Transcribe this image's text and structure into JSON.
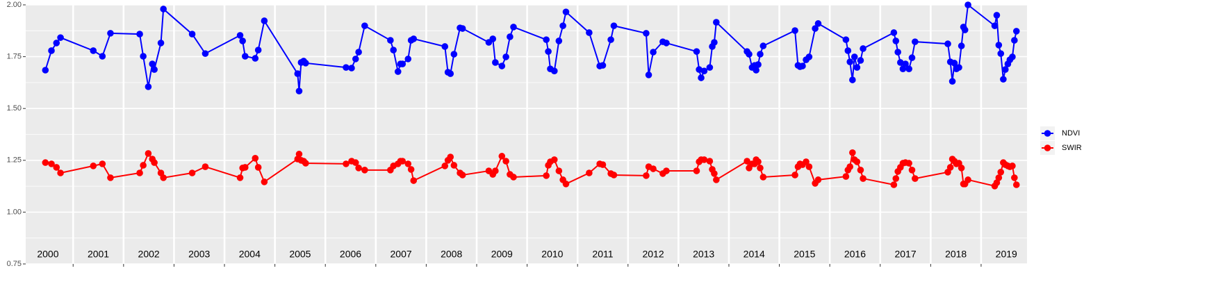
{
  "chart_data": {
    "type": "line",
    "x": [
      2000.45,
      2000.57,
      2000.67,
      2000.75,
      2001.4,
      2001.58,
      2001.74,
      2002.32,
      2002.39,
      2002.49,
      2002.57,
      2002.61,
      2002.74,
      2002.79,
      2003.36,
      2003.62,
      2004.31,
      2004.36,
      2004.41,
      2004.61,
      2004.67,
      2004.79,
      2005.45,
      2005.48,
      2005.52,
      2005.57,
      2005.61,
      2006.41,
      2006.52,
      2006.6,
      2006.66,
      2006.78,
      2007.29,
      2007.35,
      2007.44,
      2007.49,
      2007.53,
      2007.64,
      2007.7,
      2007.75,
      2008.37,
      2008.43,
      2008.48,
      2008.55,
      2008.67,
      2008.72,
      2009.24,
      2009.32,
      2009.37,
      2009.5,
      2009.58,
      2009.66,
      2009.73,
      2010.38,
      2010.42,
      2010.46,
      2010.54,
      2010.63,
      2010.71,
      2010.77,
      2011.23,
      2011.44,
      2011.5,
      2011.66,
      2011.72,
      2012.36,
      2012.41,
      2012.5,
      2012.69,
      2012.76,
      2013.36,
      2013.41,
      2013.45,
      2013.51,
      2013.62,
      2013.67,
      2013.71,
      2013.75,
      2014.36,
      2014.4,
      2014.46,
      2014.51,
      2014.54,
      2014.58,
      2014.62,
      2014.68,
      2015.31,
      2015.37,
      2015.41,
      2015.46,
      2015.53,
      2015.59,
      2015.71,
      2015.77,
      2016.32,
      2016.36,
      2016.4,
      2016.45,
      2016.49,
      2016.54,
      2016.61,
      2016.66,
      2017.27,
      2017.31,
      2017.35,
      2017.4,
      2017.45,
      2017.5,
      2017.57,
      2017.63,
      2017.69,
      2018.34,
      2018.39,
      2018.43,
      2018.47,
      2018.51,
      2018.56,
      2018.61,
      2018.65,
      2018.68,
      2018.74,
      2019.27,
      2019.31,
      2019.35,
      2019.39,
      2019.44,
      2019.48,
      2019.53,
      2019.57,
      2019.62,
      2019.66,
      2019.7
    ],
    "series": [
      {
        "name": "NDVI",
        "color": "#0000ff",
        "values": [
          1.685,
          1.779,
          1.816,
          1.842,
          1.779,
          1.752,
          1.863,
          1.859,
          1.752,
          1.605,
          1.715,
          1.688,
          1.816,
          1.98,
          1.859,
          1.765,
          1.853,
          1.826,
          1.752,
          1.742,
          1.782,
          1.923,
          1.668,
          1.584,
          1.722,
          1.729,
          1.719,
          1.698,
          1.695,
          1.739,
          1.772,
          1.899,
          1.829,
          1.782,
          1.678,
          1.715,
          1.715,
          1.739,
          1.829,
          1.836,
          1.799,
          1.675,
          1.668,
          1.762,
          1.889,
          1.886,
          1.819,
          1.836,
          1.722,
          1.705,
          1.749,
          1.846,
          1.893,
          1.832,
          1.775,
          1.691,
          1.681,
          1.826,
          1.899,
          1.966,
          1.866,
          1.705,
          1.708,
          1.832,
          1.899,
          1.863,
          1.662,
          1.772,
          1.822,
          1.816,
          1.775,
          1.688,
          1.648,
          1.681,
          1.698,
          1.799,
          1.819,
          1.916,
          1.775,
          1.762,
          1.698,
          1.708,
          1.685,
          1.712,
          1.762,
          1.802,
          1.876,
          1.708,
          1.702,
          1.705,
          1.735,
          1.749,
          1.886,
          1.91,
          1.832,
          1.779,
          1.725,
          1.638,
          1.749,
          1.698,
          1.732,
          1.789,
          1.866,
          1.826,
          1.772,
          1.722,
          1.691,
          1.715,
          1.691,
          1.745,
          1.822,
          1.812,
          1.725,
          1.631,
          1.719,
          1.691,
          1.698,
          1.802,
          1.893,
          1.879,
          2.0,
          1.899,
          1.95,
          1.806,
          1.765,
          1.641,
          1.688,
          1.715,
          1.735,
          1.749,
          1.829,
          1.873
        ]
      },
      {
        "name": "SWIR",
        "color": "#ff0000",
        "values": [
          1.239,
          1.233,
          1.216,
          1.189,
          1.223,
          1.233,
          1.166,
          1.189,
          1.226,
          1.283,
          1.256,
          1.239,
          1.189,
          1.166,
          1.189,
          1.219,
          1.166,
          1.213,
          1.216,
          1.26,
          1.216,
          1.146,
          1.256,
          1.28,
          1.25,
          1.246,
          1.236,
          1.233,
          1.246,
          1.239,
          1.213,
          1.203,
          1.203,
          1.223,
          1.233,
          1.246,
          1.246,
          1.233,
          1.206,
          1.152,
          1.223,
          1.25,
          1.266,
          1.226,
          1.189,
          1.179,
          1.199,
          1.182,
          1.199,
          1.27,
          1.246,
          1.182,
          1.169,
          1.176,
          1.226,
          1.243,
          1.253,
          1.199,
          1.156,
          1.136,
          1.189,
          1.233,
          1.229,
          1.186,
          1.179,
          1.176,
          1.219,
          1.209,
          1.186,
          1.199,
          1.199,
          1.243,
          1.253,
          1.253,
          1.246,
          1.206,
          1.186,
          1.156,
          1.246,
          1.213,
          1.233,
          1.233,
          1.253,
          1.243,
          1.213,
          1.169,
          1.179,
          1.219,
          1.233,
          1.229,
          1.243,
          1.219,
          1.139,
          1.156,
          1.172,
          1.203,
          1.219,
          1.287,
          1.253,
          1.243,
          1.203,
          1.162,
          1.132,
          1.162,
          1.196,
          1.216,
          1.236,
          1.239,
          1.236,
          1.203,
          1.162,
          1.193,
          1.216,
          1.256,
          1.246,
          1.233,
          1.236,
          1.213,
          1.136,
          1.136,
          1.156,
          1.126,
          1.142,
          1.166,
          1.193,
          1.239,
          1.229,
          1.223,
          1.219,
          1.223,
          1.166,
          1.132
        ]
      }
    ],
    "xlim": [
      2000.06,
      2019.91
    ],
    "xticks": [
      2001,
      2002,
      2003,
      2004,
      2005,
      2006,
      2007,
      2008,
      2009,
      2010,
      2011,
      2012,
      2013,
      2014,
      2015,
      2016,
      2017,
      2018,
      2019
    ],
    "ylim": [
      0.75,
      2.0
    ],
    "yticks": [
      {
        "value": 0.75,
        "label": "0.75"
      },
      {
        "value": 1.0,
        "label": "1.00"
      },
      {
        "value": 1.25,
        "label": "1.25"
      },
      {
        "value": 1.5,
        "label": "1.50"
      },
      {
        "value": 1.75,
        "label": "1.75"
      },
      {
        "value": 2.0,
        "label": "2.00"
      }
    ],
    "annotations": [
      {
        "text": "2000",
        "x": 2000.5
      },
      {
        "text": "2001",
        "x": 2001.5
      },
      {
        "text": "2002",
        "x": 2002.5
      },
      {
        "text": "2003",
        "x": 2003.5
      },
      {
        "text": "2004",
        "x": 2004.5
      },
      {
        "text": "2005",
        "x": 2005.5
      },
      {
        "text": "2006",
        "x": 2006.5
      },
      {
        "text": "2007",
        "x": 2007.5
      },
      {
        "text": "2008",
        "x": 2008.5
      },
      {
        "text": "2009",
        "x": 2009.5
      },
      {
        "text": "2010",
        "x": 2010.5
      },
      {
        "text": "2011",
        "x": 2011.5
      },
      {
        "text": "2012",
        "x": 2012.5
      },
      {
        "text": "2013",
        "x": 2013.5
      },
      {
        "text": "2014",
        "x": 2014.5
      },
      {
        "text": "2015",
        "x": 2015.5
      },
      {
        "text": "2016",
        "x": 2016.5
      },
      {
        "text": "2017",
        "x": 2017.5
      },
      {
        "text": "2018",
        "x": 2018.5
      },
      {
        "text": "2019",
        "x": 2019.5
      }
    ],
    "grid": true,
    "legend": "right"
  }
}
